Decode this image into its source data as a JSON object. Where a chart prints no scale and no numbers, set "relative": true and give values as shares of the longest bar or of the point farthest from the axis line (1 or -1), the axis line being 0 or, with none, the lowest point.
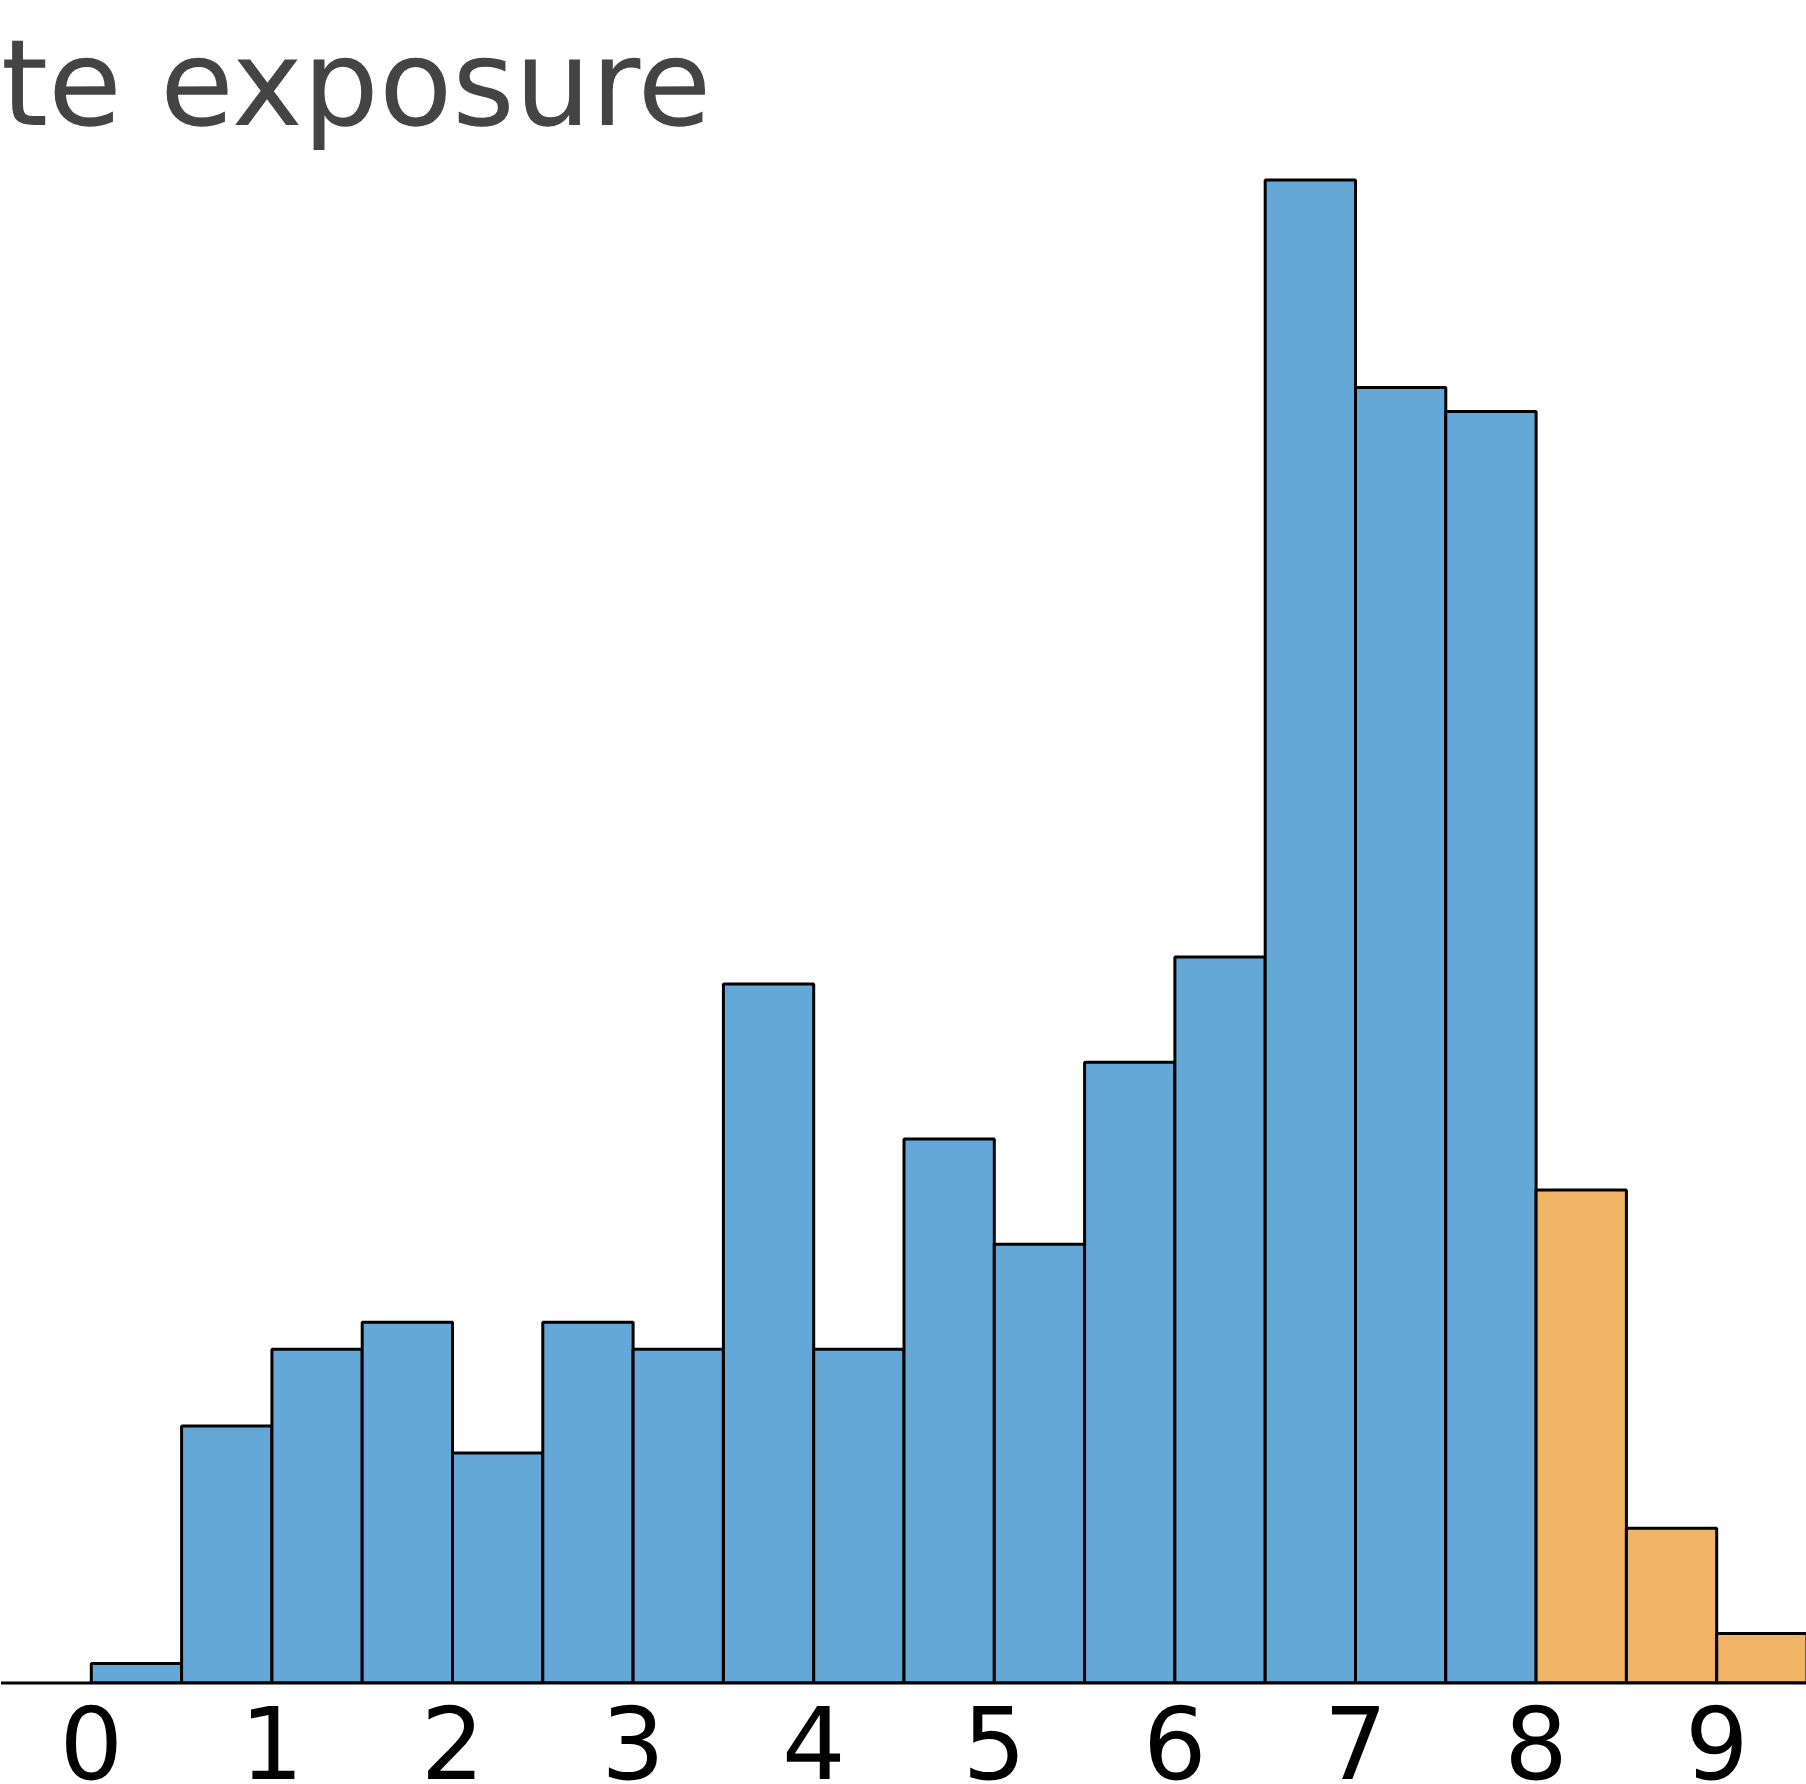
{
  "chart_data": {
    "type": "bar",
    "title": "te exposure",
    "relative": true,
    "x": [
      0.25,
      0.75,
      1.25,
      1.75,
      2.25,
      2.75,
      3.25,
      3.75,
      4.25,
      4.75,
      5.25,
      5.75,
      6.25,
      6.75,
      7.25,
      7.75,
      8.25,
      8.75,
      9.25
    ],
    "values": [
      0.013,
      0.171,
      0.222,
      0.24,
      0.153,
      0.24,
      0.222,
      0.465,
      0.222,
      0.362,
      0.292,
      0.413,
      0.483,
      1,
      0.862,
      0.846,
      0.328,
      0.103,
      0.033
    ],
    "colors": [
      "#64a8d8",
      "#64a8d8",
      "#64a8d8",
      "#64a8d8",
      "#64a8d8",
      "#64a8d8",
      "#64a8d8",
      "#64a8d8",
      "#64a8d8",
      "#64a8d8",
      "#64a8d8",
      "#64a8d8",
      "#64a8d8",
      "#64a8d8",
      "#64a8d8",
      "#64a8d8",
      "#f0b466",
      "#f0b466",
      "#f0b466"
    ],
    "xlim": [
      -0.5,
      9.5
    ],
    "xticks": [
      0,
      1,
      2,
      3,
      4,
      5,
      6,
      7,
      8,
      9
    ],
    "grid": false,
    "legend": false
  }
}
